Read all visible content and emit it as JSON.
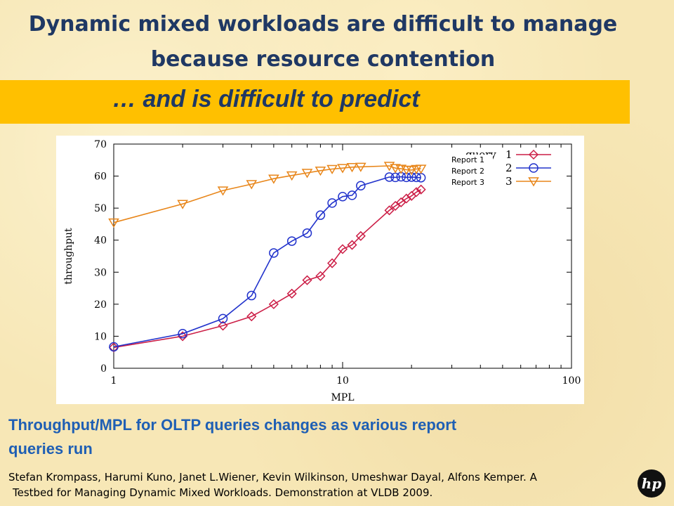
{
  "slide": {
    "title_line1": "Dynamic mixed workloads are difficult to manage",
    "title_line2": "because resource contention",
    "banner": "…  and  is difficult to predict",
    "caption_line1": "Throughput/MPL for OLTP queries changes as various report",
    "caption_line2": "queries run",
    "ref_line1": "Stefan Krompass, Harumi Kuno, Janet L.Wiener, Kevin Wilkinson, Umeshwar Dayal, Alfons Kemper. A",
    "ref_line2": "Testbed for Managing Dynamic Mixed Workloads. Demonstration at VLDB 2009.",
    "logo_text": "hp",
    "colors": {
      "title": "#1f3864",
      "banner_bg": "#ffc000",
      "caption": "#1f5fb4"
    }
  },
  "chart_data": {
    "type": "line",
    "xscale": "log",
    "xlabel": "MPL",
    "ylabel": "throughput",
    "xlim": [
      1,
      100
    ],
    "ylim": [
      0,
      70
    ],
    "xticks": [
      1,
      10,
      100
    ],
    "yticks": [
      0,
      10,
      20,
      30,
      40,
      50,
      60,
      70
    ],
    "grid": false,
    "legend_position": "top-right",
    "legend_header": "query",
    "legend_overlays": [
      "Report 1",
      "Report 2",
      "Report 3"
    ],
    "series": [
      {
        "name": "1",
        "color": "#cc1f47",
        "marker": "diamond",
        "x": [
          1,
          2,
          3,
          4,
          5,
          6,
          7,
          8,
          9,
          10,
          11,
          12,
          16,
          17,
          18,
          19,
          20,
          21,
          22
        ],
        "y": [
          6.5,
          10,
          13.3,
          16.2,
          20,
          23.3,
          27.5,
          28.8,
          32.8,
          37.2,
          38.5,
          41.3,
          49.3,
          50.7,
          51.8,
          53.0,
          53.8,
          55.0,
          55.8
        ]
      },
      {
        "name": "2",
        "color": "#2233cc",
        "marker": "circle",
        "x": [
          1,
          2,
          3,
          4,
          5,
          6,
          7,
          8,
          9,
          10,
          11,
          12,
          16,
          17,
          18,
          19,
          20,
          21,
          22
        ],
        "y": [
          6.7,
          10.8,
          15.5,
          22.7,
          36.0,
          39.7,
          42.2,
          47.8,
          51.6,
          53.6,
          54.0,
          57.0,
          59.7,
          59.6,
          59.8,
          59.6,
          59.7,
          59.6,
          59.5
        ]
      },
      {
        "name": "3",
        "color": "#e8861a",
        "marker": "triangle-down",
        "x": [
          1,
          2,
          3,
          4,
          5,
          6,
          7,
          8,
          9,
          10,
          11,
          12,
          16,
          17,
          18,
          19,
          20,
          21,
          22
        ],
        "y": [
          45.5,
          51.3,
          55.5,
          57.5,
          59.2,
          60.2,
          61.0,
          61.7,
          62.2,
          62.5,
          62.8,
          62.9,
          63.2,
          62.5,
          62.3,
          62.0,
          61.9,
          62.2,
          62.3
        ]
      }
    ]
  }
}
